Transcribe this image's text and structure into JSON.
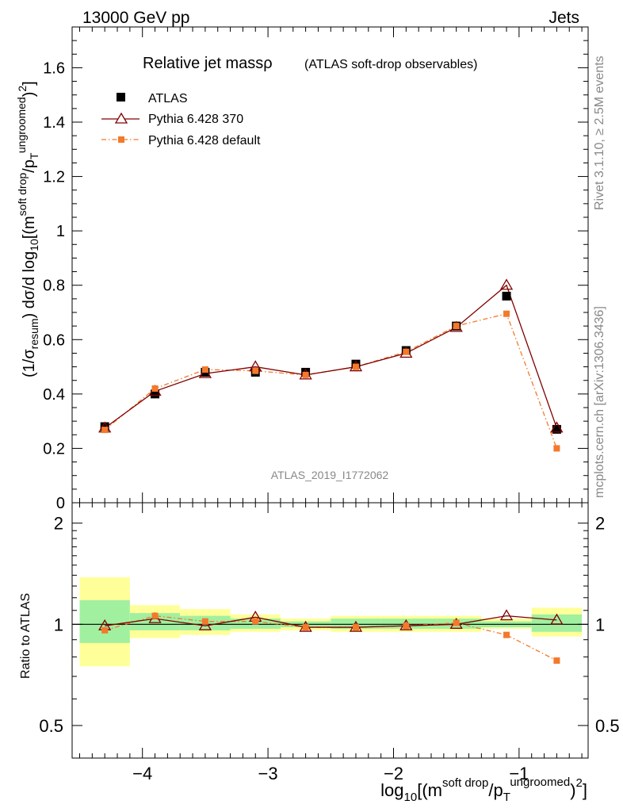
{
  "header": {
    "left": "13000 GeV pp",
    "right": "Jets"
  },
  "side_labels": {
    "rivet": "Rivet 3.1.10, ≥ 2.5M events",
    "mcplots": "mcplots.cern.ch [arXiv:1306.3436]"
  },
  "analysis_id": "ATLAS_2019_I1772062",
  "colors": {
    "atlas": "#000000",
    "pythia370": "#800000",
    "pythiaDefault": "#f4792b",
    "band_green": "#a0f0a0",
    "band_yellow": "#ffff99"
  },
  "chart_data": [
    {
      "type": "line",
      "title_main": "Relative jet massρ",
      "title_sub": "(ATLAS soft-drop observables)",
      "ylabel": "(1/σresum) dσ/d log10[(m soft drop/pT ungroomed)²]",
      "ylim": [
        0,
        1.75
      ],
      "xlim": [
        -4.56,
        -0.45
      ],
      "yticks": [
        0,
        0.2,
        0.4,
        0.6,
        0.8,
        1,
        1.2,
        1.4,
        1.6
      ],
      "ytick_labels": [
        "0",
        "0.2",
        "0.4",
        "0.6",
        "0.8",
        "1",
        "1.2",
        "1.4",
        "1.6"
      ],
      "legend": [
        {
          "name": "ATLAS",
          "marker": "square-filled"
        },
        {
          "name": "Pythia 6.428 370",
          "marker": "triangle-open"
        },
        {
          "name": "Pythia 6.428 default",
          "marker": "square-small-dashdot"
        }
      ],
      "x": [
        -4.3,
        -3.9,
        -3.5,
        -3.1,
        -2.7,
        -2.3,
        -1.9,
        -1.5,
        -1.1,
        -0.7
      ],
      "series": [
        {
          "name": "ATLAS",
          "values": [
            0.28,
            0.4,
            0.48,
            0.48,
            0.48,
            0.51,
            0.56,
            0.65,
            0.76,
            0.27
          ]
        },
        {
          "name": "Pythia 6.428 370",
          "values": [
            0.275,
            0.41,
            0.475,
            0.5,
            0.47,
            0.5,
            0.55,
            0.645,
            0.8,
            0.275
          ]
        },
        {
          "name": "Pythia 6.428 default",
          "values": [
            0.268,
            0.42,
            0.49,
            0.485,
            0.47,
            0.5,
            0.555,
            0.65,
            0.695,
            0.2
          ]
        }
      ]
    },
    {
      "type": "line",
      "ylabel": "Ratio to ATLAS",
      "xlabel": "log10[(m soft drop/pT ungroomed)²]",
      "yscale": "log",
      "ylim": [
        0.4,
        2.3
      ],
      "xlim": [
        -4.56,
        -0.45
      ],
      "yticks": [
        0.5,
        1,
        2
      ],
      "ytick_labels": [
        "0.5",
        "1",
        "2"
      ],
      "xticks": [
        -4,
        -3,
        -2,
        -1
      ],
      "xtick_labels": [
        "−4",
        "−3",
        "−2",
        "−1"
      ],
      "bins": [
        [
          -4.5,
          -4.1
        ],
        [
          -4.1,
          -3.7
        ],
        [
          -3.7,
          -3.3
        ],
        [
          -3.3,
          -2.9
        ],
        [
          -2.9,
          -2.5
        ],
        [
          -2.5,
          -2.1
        ],
        [
          -2.1,
          -1.7
        ],
        [
          -1.7,
          -1.3
        ],
        [
          -1.3,
          -0.9
        ],
        [
          -0.9,
          -0.5
        ]
      ],
      "band_green": [
        [
          0.88,
          1.18
        ],
        [
          0.96,
          1.08
        ],
        [
          0.96,
          1.06
        ],
        [
          0.97,
          1.04
        ],
        [
          0.98,
          1.02
        ],
        [
          0.97,
          1.04
        ],
        [
          0.97,
          1.04
        ],
        [
          0.97,
          1.04
        ],
        [
          0.98,
          1.02
        ],
        [
          0.95,
          1.07
        ]
      ],
      "band_yellow": [
        [
          0.75,
          1.38
        ],
        [
          0.91,
          1.14
        ],
        [
          0.93,
          1.11
        ],
        [
          0.95,
          1.07
        ],
        [
          0.96,
          1.04
        ],
        [
          0.95,
          1.06
        ],
        [
          0.95,
          1.06
        ],
        [
          0.95,
          1.06
        ],
        [
          0.97,
          1.04
        ],
        [
          0.92,
          1.12
        ]
      ],
      "x": [
        -4.3,
        -3.9,
        -3.5,
        -3.1,
        -2.7,
        -2.3,
        -1.9,
        -1.5,
        -1.1,
        -0.7
      ],
      "series": [
        {
          "name": "Pythia 6.428 370",
          "values": [
            0.99,
            1.04,
            0.99,
            1.05,
            0.98,
            0.98,
            0.99,
            1.0,
            1.06,
            1.03
          ]
        },
        {
          "name": "Pythia 6.428 default",
          "values": [
            0.96,
            1.06,
            1.02,
            1.02,
            0.98,
            0.98,
            0.99,
            1.01,
            0.93,
            0.78
          ]
        }
      ]
    }
  ]
}
